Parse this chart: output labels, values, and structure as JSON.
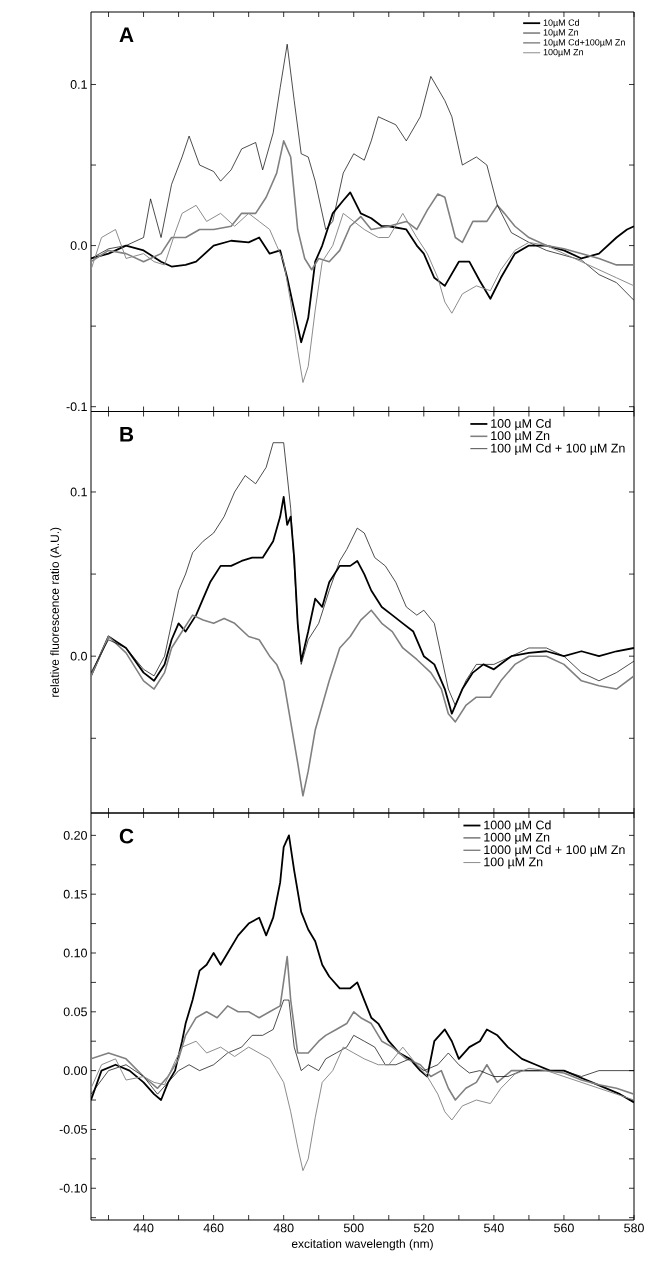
{
  "chart_data": [
    {
      "type": "line",
      "xlim": [
        425,
        580
      ],
      "ylim": [
        -0.103,
        0.145
      ],
      "tick_labels": "y",
      "legend": "top right",
      "marker": "none",
      "line_style": "solid",
      "annotations": [
        "A"
      ],
      "xticks": [
        {
          "value": 430,
          "label": null
        },
        440,
        {
          "value": 450,
          "label": null
        },
        460,
        {
          "value": 470,
          "label": null
        },
        480,
        {
          "value": 490,
          "label": null
        },
        500,
        {
          "value": 510,
          "label": null
        },
        520,
        {
          "value": 530,
          "label": null
        },
        540,
        {
          "value": 550,
          "label": null
        },
        560,
        {
          "value": 570,
          "label": null
        },
        580
      ],
      "yticks": [
        {
          "value": -0.1,
          "label": "-0.1"
        },
        {
          "value": -0.05,
          "label": null
        },
        {
          "value": 0,
          "label": "0.0"
        },
        {
          "value": 0.05,
          "label": null
        },
        {
          "value": 0.1,
          "label": "0.1"
        }
      ],
      "series": [
        {
          "name": "10µM Cd",
          "color": "#000000",
          "x": [
            425,
            430,
            435,
            440,
            445,
            448,
            452,
            455,
            460,
            465,
            470,
            473,
            476,
            479,
            481,
            483,
            485,
            487,
            489,
            491,
            494,
            497,
            499,
            502,
            505,
            508,
            510,
            515,
            518,
            520,
            523,
            526,
            530,
            533,
            536,
            539,
            542,
            546,
            550,
            555,
            560,
            565,
            570,
            575,
            578,
            580
          ],
          "values": [
            -0.008,
            -0.005,
            0.0,
            -0.003,
            -0.01,
            -0.013,
            -0.012,
            -0.01,
            0.0,
            0.003,
            0.002,
            0.005,
            -0.005,
            -0.003,
            -0.02,
            -0.04,
            -0.06,
            -0.045,
            -0.01,
            0.0,
            0.02,
            0.028,
            0.033,
            0.02,
            0.017,
            0.012,
            0.012,
            0.01,
            0.0,
            -0.005,
            -0.02,
            -0.025,
            -0.01,
            -0.01,
            -0.022,
            -0.033,
            -0.02,
            -0.005,
            0.0,
            0.0,
            -0.003,
            -0.008,
            -0.005,
            0.005,
            0.01,
            0.012
          ]
        },
        {
          "name": "10µM Zn",
          "color": "#808080",
          "x": [
            425,
            430,
            435,
            440,
            445,
            448,
            452,
            456,
            460,
            465,
            468,
            472,
            475,
            478,
            480,
            482,
            484,
            486,
            488,
            490,
            493,
            496,
            499,
            502,
            505,
            510,
            515,
            518,
            521,
            524,
            526,
            529,
            531,
            534,
            538,
            541,
            543,
            546,
            550,
            555,
            560,
            565,
            570,
            575,
            580
          ],
          "values": [
            -0.01,
            -0.003,
            -0.005,
            -0.01,
            -0.005,
            0.005,
            0.005,
            0.01,
            0.01,
            0.012,
            0.02,
            0.02,
            0.03,
            0.045,
            0.065,
            0.055,
            0.01,
            -0.008,
            -0.015,
            -0.008,
            -0.01,
            -0.003,
            0.012,
            0.018,
            0.01,
            0.012,
            0.015,
            0.01,
            0.022,
            0.032,
            0.03,
            0.005,
            0.002,
            0.015,
            0.015,
            0.025,
            0.02,
            0.012,
            0.005,
            0.0,
            -0.002,
            -0.005,
            -0.008,
            -0.012,
            -0.012
          ]
        },
        {
          "name": "10µM Cd+100µM Zn",
          "color": "#000000",
          "x": [
            425,
            430,
            435,
            440,
            442,
            445,
            448,
            451,
            453,
            456,
            460,
            462,
            465,
            468,
            472,
            474,
            477,
            479,
            481,
            483,
            485,
            487,
            489,
            492,
            494,
            497,
            500,
            503,
            505,
            507,
            512,
            515,
            519,
            522,
            526,
            528,
            531,
            535,
            538,
            541,
            545,
            550,
            555,
            560,
            565,
            570,
            575,
            580
          ],
          "values": [
            -0.008,
            -0.002,
            0.0,
            0.005,
            0.029,
            0.005,
            0.038,
            0.055,
            0.068,
            0.05,
            0.046,
            0.04,
            0.047,
            0.06,
            0.064,
            0.047,
            0.07,
            0.098,
            0.125,
            0.09,
            0.057,
            0.055,
            0.04,
            0.01,
            0.015,
            0.045,
            0.057,
            0.053,
            0.065,
            0.08,
            0.075,
            0.065,
            0.08,
            0.105,
            0.09,
            0.08,
            0.05,
            0.055,
            0.05,
            0.025,
            0.008,
            0.002,
            -0.003,
            -0.006,
            -0.009,
            -0.018,
            -0.023,
            -0.034
          ]
        },
        {
          "name": "100µM Zn",
          "color": "#8c8c8c",
          "x": [
            425,
            428,
            432,
            435,
            440,
            443,
            446,
            449,
            451,
            455,
            458,
            462,
            466,
            470,
            473,
            476,
            478,
            480,
            482,
            484,
            485.5,
            487,
            489,
            491,
            494,
            497,
            500,
            503,
            507,
            510,
            514,
            518,
            521,
            524,
            526,
            528,
            531,
            535,
            539,
            542,
            546,
            550,
            555,
            560,
            565,
            570,
            575,
            580
          ],
          "values": [
            -0.015,
            0.005,
            0.01,
            -0.008,
            -0.005,
            -0.01,
            -0.012,
            0.008,
            0.02,
            0.025,
            0.015,
            0.02,
            0.012,
            0.02,
            0.015,
            0.01,
            0.0,
            -0.01,
            -0.035,
            -0.065,
            -0.085,
            -0.075,
            -0.04,
            -0.01,
            0.0,
            0.02,
            0.015,
            0.01,
            0.005,
            0.005,
            0.02,
            0.005,
            -0.005,
            -0.02,
            -0.035,
            -0.042,
            -0.03,
            -0.025,
            -0.028,
            -0.015,
            -0.003,
            0.002,
            0.0,
            -0.005,
            -0.01,
            -0.015,
            -0.02,
            -0.025
          ]
        }
      ]
    },
    {
      "type": "line",
      "xlim": [
        425,
        580
      ],
      "ylim": [
        -0.0955,
        0.149
      ],
      "tick_labels": "y",
      "legend": "top right",
      "marker": "none",
      "line_style": "solid",
      "annotations": [
        "B"
      ],
      "ylabel": "relative fluorescence ratio (A.U.)",
      "xticks": [
        {
          "value": 430,
          "label": null
        },
        440,
        {
          "value": 450,
          "label": null
        },
        460,
        {
          "value": 470,
          "label": null
        },
        480,
        {
          "value": 490,
          "label": null
        },
        500,
        {
          "value": 510,
          "label": null
        },
        520,
        {
          "value": 530,
          "label": null
        },
        540,
        {
          "value": 550,
          "label": null
        },
        560,
        {
          "value": 570,
          "label": null
        },
        580
      ],
      "yticks": [
        {
          "value": -0.05,
          "label": null
        },
        {
          "value": 0,
          "label": "0.0"
        },
        {
          "value": 0.05,
          "label": null
        },
        {
          "value": 0.1,
          "label": "0.1"
        }
      ],
      "series": [
        {
          "name": "100 µM Cd",
          "color": "#000000",
          "x": [
            425,
            430,
            435,
            440,
            443,
            446,
            448,
            450,
            452,
            455,
            457,
            459,
            462,
            465,
            468,
            471,
            474,
            477,
            479,
            480,
            481,
            482,
            483,
            484,
            485,
            487,
            489,
            491,
            493,
            496,
            499,
            501,
            503,
            505,
            508,
            511,
            514,
            517,
            520,
            523,
            526,
            528,
            531,
            534,
            537,
            540,
            545,
            550,
            555,
            560,
            565,
            570,
            575,
            580
          ],
          "values": [
            -0.012,
            0.012,
            0.005,
            -0.01,
            -0.015,
            -0.005,
            0.01,
            0.02,
            0.015,
            0.025,
            0.035,
            0.045,
            0.055,
            0.055,
            0.058,
            0.06,
            0.06,
            0.07,
            0.085,
            0.097,
            0.08,
            0.085,
            0.06,
            0.02,
            -0.003,
            0.015,
            0.035,
            0.03,
            0.045,
            0.055,
            0.055,
            0.058,
            0.05,
            0.04,
            0.03,
            0.025,
            0.02,
            0.015,
            0.0,
            -0.005,
            -0.02,
            -0.035,
            -0.02,
            -0.01,
            -0.005,
            -0.008,
            0.0,
            0.002,
            0.003,
            0.0,
            0.003,
            0.0,
            0.003,
            0.005
          ]
        },
        {
          "name": "100 µM Zn",
          "color": "#808080",
          "x": [
            425,
            430,
            435,
            440,
            443,
            446,
            448,
            451,
            454,
            457,
            460,
            463,
            466,
            470,
            473,
            476,
            478,
            480,
            482,
            484,
            485.5,
            487,
            489,
            491,
            493,
            496,
            499,
            502,
            505,
            508,
            511,
            514,
            518,
            522,
            525,
            527,
            529,
            532,
            535,
            539,
            542,
            546,
            550,
            555,
            560,
            565,
            570,
            575,
            580
          ],
          "values": [
            -0.012,
            0.012,
            0.002,
            -0.015,
            -0.02,
            -0.01,
            0.005,
            0.015,
            0.025,
            0.022,
            0.02,
            0.023,
            0.02,
            0.012,
            0.01,
            0.0,
            -0.005,
            -0.015,
            -0.04,
            -0.065,
            -0.085,
            -0.07,
            -0.045,
            -0.03,
            -0.015,
            0.005,
            0.012,
            0.022,
            0.028,
            0.02,
            0.015,
            0.005,
            -0.002,
            -0.01,
            -0.02,
            -0.035,
            -0.04,
            -0.03,
            -0.025,
            -0.025,
            -0.015,
            -0.005,
            0.0,
            0.0,
            -0.005,
            -0.015,
            -0.018,
            -0.02,
            -0.012
          ]
        },
        {
          "name": "100 µM Cd + 100 µM Zn",
          "color": "#000000",
          "x": [
            425,
            430,
            435,
            440,
            443,
            446,
            448,
            450,
            452,
            454,
            457,
            460,
            463,
            466,
            469,
            472,
            475,
            477,
            479,
            480,
            482,
            484,
            485,
            487,
            490,
            493,
            496,
            498,
            501,
            503,
            506,
            509,
            512,
            515,
            518,
            520,
            523,
            525,
            527,
            529,
            532,
            535,
            540,
            545,
            550,
            555,
            560,
            565,
            570,
            575,
            580
          ],
          "values": [
            -0.01,
            0.01,
            0.005,
            -0.008,
            -0.012,
            0.0,
            0.02,
            0.04,
            0.05,
            0.063,
            0.07,
            0.075,
            0.085,
            0.1,
            0.11,
            0.105,
            0.115,
            0.13,
            0.13,
            0.13,
            0.09,
            0.02,
            -0.005,
            0.01,
            0.02,
            0.04,
            0.058,
            0.065,
            0.078,
            0.075,
            0.06,
            0.055,
            0.045,
            0.03,
            0.025,
            0.028,
            0.02,
            0.0,
            -0.02,
            -0.03,
            -0.015,
            -0.005,
            -0.005,
            0.0,
            0.005,
            0.005,
            0.0,
            -0.01,
            -0.015,
            -0.01,
            -0.003
          ]
        }
      ]
    },
    {
      "type": "line",
      "xlim": [
        425,
        580
      ],
      "ylim": [
        -0.127,
        0.219
      ],
      "legend": "top right",
      "marker": "none",
      "line_style": "solid",
      "annotations": [
        "C"
      ],
      "xlabel": "excitation wavelength (nm)",
      "xticks": [
        {
          "value": 430,
          "label": null
        },
        440,
        {
          "value": 450,
          "label": null
        },
        460,
        {
          "value": 470,
          "label": null
        },
        480,
        {
          "value": 490,
          "label": null
        },
        500,
        {
          "value": 510,
          "label": null
        },
        520,
        {
          "value": 530,
          "label": null
        },
        540,
        {
          "value": 550,
          "label": null
        },
        560,
        {
          "value": 570,
          "label": null
        },
        580
      ],
      "yticks": [
        {
          "value": -0.125,
          "label": null
        },
        {
          "value": -0.1,
          "label": "-0.10"
        },
        {
          "value": -0.075,
          "label": null
        },
        {
          "value": -0.05,
          "label": "-0.05"
        },
        {
          "value": -0.025,
          "label": null
        },
        {
          "value": 0,
          "label": "0.00"
        },
        {
          "value": 0.025,
          "label": null
        },
        {
          "value": 0.05,
          "label": "0.05"
        },
        {
          "value": 0.075,
          "label": null
        },
        {
          "value": 0.1,
          "label": "0.10"
        },
        {
          "value": 0.125,
          "label": null
        },
        {
          "value": 0.15,
          "label": "0.15"
        },
        {
          "value": 0.175,
          "label": null
        },
        {
          "value": 0.2,
          "label": "0.20"
        }
      ],
      "series": [
        {
          "name": "1000 µM Cd",
          "color": "#000000",
          "x": [
            425,
            428,
            432,
            436,
            440,
            443,
            445,
            447,
            449,
            451,
            452,
            454,
            456,
            458,
            460,
            462,
            464,
            467,
            470,
            473,
            475,
            477,
            479,
            480,
            481.5,
            483,
            485,
            487,
            489,
            491,
            493,
            496,
            499,
            501,
            503,
            505,
            507,
            510,
            513,
            516,
            519,
            521,
            523,
            526,
            528,
            530,
            533,
            536,
            538,
            541,
            544,
            548,
            552,
            556,
            560,
            564,
            568,
            572,
            576,
            580
          ],
          "values": [
            -0.025,
            0.0,
            0.005,
            0.0,
            -0.01,
            -0.02,
            -0.025,
            -0.01,
            0.0,
            0.025,
            0.04,
            0.06,
            0.085,
            0.09,
            0.1,
            0.09,
            0.1,
            0.115,
            0.125,
            0.13,
            0.115,
            0.13,
            0.16,
            0.19,
            0.2,
            0.17,
            0.135,
            0.12,
            0.11,
            0.09,
            0.08,
            0.07,
            0.07,
            0.075,
            0.06,
            0.045,
            0.04,
            0.025,
            0.015,
            0.01,
            0.0,
            -0.005,
            0.025,
            0.035,
            0.025,
            0.01,
            0.02,
            0.025,
            0.035,
            0.03,
            0.02,
            0.01,
            0.005,
            0.0,
            0.0,
            -0.005,
            -0.01,
            -0.015,
            -0.02,
            -0.027
          ]
        },
        {
          "name": "1000 µM Zn",
          "color": "#808080",
          "x": [
            425,
            430,
            435,
            440,
            444,
            447,
            450,
            452,
            455,
            458,
            461,
            464,
            467,
            470,
            473,
            476,
            479,
            481,
            482,
            484,
            487,
            490,
            492,
            495,
            498,
            500,
            502,
            505,
            508,
            511,
            515,
            519,
            522,
            525,
            527,
            529,
            532,
            535,
            538,
            541,
            545,
            550,
            555,
            560,
            565,
            570,
            575,
            580
          ],
          "values": [
            0.01,
            0.015,
            0.01,
            -0.005,
            -0.015,
            -0.005,
            0.01,
            0.03,
            0.045,
            0.05,
            0.045,
            0.055,
            0.05,
            0.05,
            0.045,
            0.05,
            0.055,
            0.097,
            0.06,
            0.015,
            0.015,
            0.025,
            0.03,
            0.035,
            0.04,
            0.05,
            0.045,
            0.04,
            0.025,
            0.02,
            0.01,
            0.005,
            -0.005,
            0.0,
            -0.015,
            -0.025,
            -0.015,
            -0.01,
            0.005,
            -0.01,
            0.0,
            0.0,
            0.0,
            -0.002,
            -0.008,
            -0.012,
            -0.015,
            -0.02
          ]
        },
        {
          "name": "1000 µM Cd + 100 µM Zn",
          "color": "#000000",
          "x": [
            425,
            430,
            435,
            440,
            444,
            447,
            450,
            453,
            456,
            460,
            464,
            468,
            471,
            474,
            477,
            480,
            481.5,
            483,
            485,
            487,
            490,
            492,
            495,
            498,
            500,
            503,
            506,
            509,
            512,
            516,
            520,
            524,
            527,
            530,
            533,
            536,
            540,
            544,
            548,
            552,
            556,
            560,
            565,
            570,
            575,
            580
          ],
          "values": [
            -0.02,
            0.0,
            0.005,
            -0.005,
            -0.02,
            -0.01,
            0.0,
            0.005,
            0.0,
            0.005,
            0.015,
            0.02,
            0.03,
            0.03,
            0.035,
            0.06,
            0.06,
            0.02,
            0.0,
            0.005,
            0.0,
            0.01,
            0.015,
            0.02,
            0.03,
            0.025,
            0.02,
            0.005,
            0.005,
            0.01,
            0.0,
            0.005,
            0.015,
            0.005,
            -0.002,
            0.0,
            -0.005,
            -0.005,
            0.0,
            0.0,
            0.0,
            0.0,
            -0.005,
            0.0,
            0.0,
            0.0
          ]
        },
        {
          "name": "100 µM Zn",
          "color": "#8c8c8c",
          "x": [
            425,
            428,
            432,
            435,
            440,
            443,
            446,
            449,
            451,
            455,
            458,
            462,
            466,
            470,
            473,
            476,
            478,
            480,
            482,
            484,
            485.5,
            487,
            489,
            491,
            494,
            497,
            500,
            503,
            507,
            510,
            514,
            518,
            521,
            524,
            526,
            528,
            531,
            535,
            539,
            542,
            546,
            550,
            555,
            560,
            565,
            570,
            575,
            580
          ],
          "values": [
            -0.015,
            0.005,
            0.01,
            -0.008,
            -0.005,
            -0.01,
            -0.012,
            0.008,
            0.02,
            0.025,
            0.015,
            0.02,
            0.012,
            0.02,
            0.015,
            0.01,
            0.0,
            -0.01,
            -0.035,
            -0.065,
            -0.085,
            -0.075,
            -0.04,
            -0.01,
            0.0,
            0.02,
            0.015,
            0.01,
            0.005,
            0.005,
            0.02,
            0.005,
            -0.005,
            -0.02,
            -0.035,
            -0.042,
            -0.03,
            -0.025,
            -0.028,
            -0.015,
            -0.003,
            0.002,
            0.0,
            -0.005,
            -0.01,
            -0.015,
            -0.02,
            -0.025
          ]
        }
      ]
    }
  ]
}
